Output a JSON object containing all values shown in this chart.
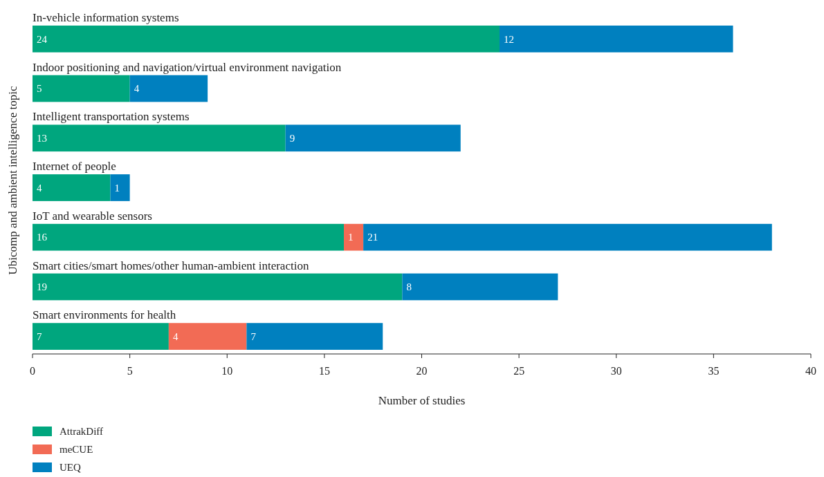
{
  "chart_data": {
    "type": "bar",
    "orientation": "horizontal",
    "stacked": true,
    "xlabel": "Number of studies",
    "ylabel": "Ubicomp and ambient intelligence topic",
    "categories": [
      "In-vehicle information systems",
      "Indoor positioning and navigation/virtual environment navigation",
      "Intelligent transportation systems",
      "Internet of people",
      "IoT and wearable sensors",
      "Smart cities/smart homes/other human-ambient interaction",
      "Smart environments for health"
    ],
    "series": [
      {
        "name": "AttrakDiff",
        "color": "#00a67e",
        "values": [
          24,
          5,
          13,
          4,
          16,
          19,
          7
        ]
      },
      {
        "name": "meCUE",
        "color": "#f26b55",
        "values": [
          null,
          null,
          null,
          null,
          1,
          null,
          4
        ]
      },
      {
        "name": "UEQ",
        "color": "#0080bf",
        "values": [
          12,
          4,
          9,
          1,
          21,
          8,
          7
        ]
      }
    ],
    "xlim": [
      0,
      40
    ],
    "xticks": [
      0,
      5,
      10,
      15,
      20,
      25,
      30,
      35,
      40
    ],
    "data_labels": true,
    "grid": false,
    "legend": "bottom"
  }
}
